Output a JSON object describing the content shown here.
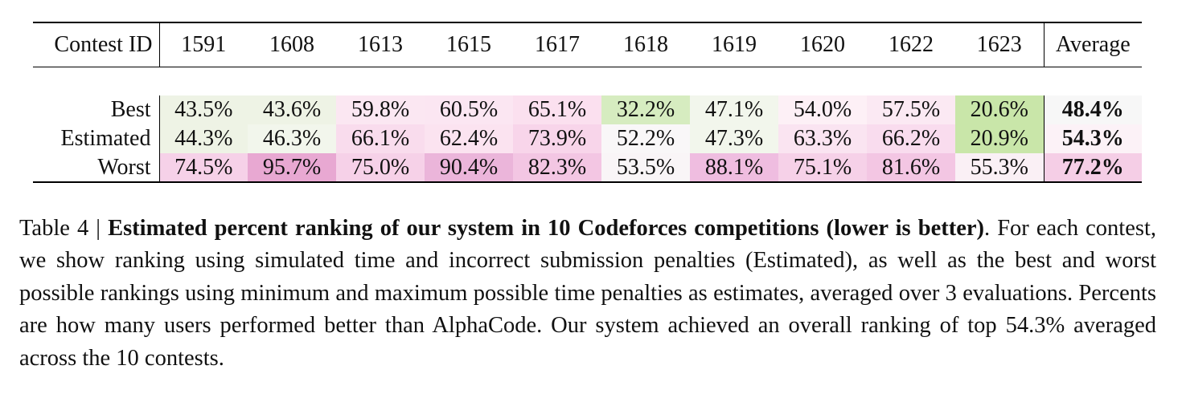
{
  "table": {
    "header_label": "Contest ID",
    "contest_ids": [
      "1591",
      "1608",
      "1613",
      "1615",
      "1617",
      "1618",
      "1619",
      "1620",
      "1622",
      "1623"
    ],
    "average_label": "Average",
    "rows": [
      {
        "label": "Best",
        "values": [
          "43.5%",
          "43.6%",
          "59.8%",
          "60.5%",
          "65.1%",
          "32.2%",
          "47.1%",
          "54.0%",
          "57.5%",
          "20.6%"
        ],
        "colors": [
          "#eef3e5",
          "#eef3e5",
          "#fbe7f2",
          "#fbe6f2",
          "#fbe0ef",
          "#d6ecc0",
          "#f2f6ec",
          "#fdf0f6",
          "#fbe9f3",
          "#c9e6a9"
        ],
        "average": "48.4%",
        "average_color": "#f7f7f7"
      },
      {
        "label": "Estimated",
        "values": [
          "44.3%",
          "46.3%",
          "66.1%",
          "62.4%",
          "73.9%",
          "52.2%",
          "47.3%",
          "63.3%",
          "66.2%",
          "20.9%"
        ],
        "colors": [
          "#eef3e5",
          "#f2f6ec",
          "#f9dced",
          "#fbe3f0",
          "#f8d5ea",
          "#f9f7f8",
          "#f2f6ec",
          "#fae4f1",
          "#f9dcee",
          "#c9e6a9"
        ],
        "average": "54.3%",
        "average_color": "#fcf2f7"
      },
      {
        "label": "Worst",
        "values": [
          "74.5%",
          "95.7%",
          "75.0%",
          "90.4%",
          "82.3%",
          "53.5%",
          "88.1%",
          "75.1%",
          "81.6%",
          "55.3%"
        ],
        "colors": [
          "#f6d1e8",
          "#e8a8d2",
          "#f6d1e8",
          "#ebb5da",
          "#f3c6e3",
          "#f9f5f7",
          "#efbde0",
          "#f6d1e8",
          "#f3c6e3",
          "#faf0f5"
        ],
        "average": "77.2%",
        "average_color": "#f5cee6"
      }
    ]
  },
  "caption": {
    "prefix": "Table 4 | ",
    "bold": "Estimated percent ranking of our system in 10 Codeforces competitions (lower is better)",
    "rest": ". For each contest, we show ranking using simulated time and incorrect submission penalties (Estimated), as well as the best and worst possible rankings using minimum and maximum possible time penalties as estimates, averaged over 3 evaluations. Percents are how many users performed better than AlphaCode. Our system achieved an overall ranking of top 54.3% averaged across the 10 contests."
  }
}
